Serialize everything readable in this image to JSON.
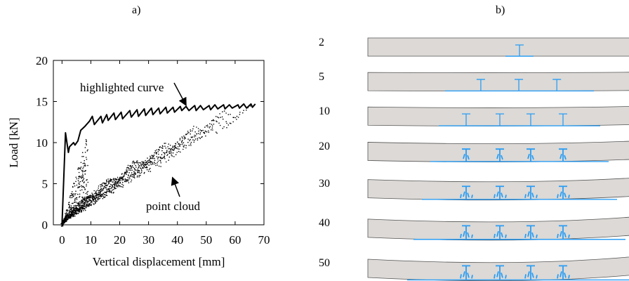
{
  "panel_a_label": "a)",
  "panel_b_label": "b)",
  "chart_data": {
    "type": "scatter",
    "xlabel": "Vertical displacement [mm]",
    "ylabel": "Load [kN]",
    "xlim": [
      -3,
      70
    ],
    "ylim": [
      0,
      20
    ],
    "xticks": [
      0,
      10,
      20,
      30,
      40,
      50,
      60,
      70
    ],
    "yticks": [
      0,
      5,
      10,
      15,
      20
    ],
    "grid": false,
    "annotations": [
      {
        "text": "highlighted curve",
        "target": [
          43,
          14.2
        ]
      },
      {
        "text": "point cloud",
        "target": [
          40,
          6.0
        ]
      }
    ],
    "series": [
      {
        "type": "line",
        "x": [
          0,
          1.2,
          2.2,
          2.6,
          4,
          4.5,
          5.5,
          6.5,
          8,
          9.5,
          10.5,
          11.2,
          13.5,
          14,
          15.5,
          16,
          18,
          18.5,
          20.5,
          21,
          23.5,
          24,
          26,
          26.5,
          28.5,
          29,
          31,
          31.5,
          33.5,
          34,
          36,
          36.5,
          38.5,
          39,
          41,
          41.5,
          43,
          44,
          46,
          46.5,
          48,
          49,
          51,
          51.5,
          53,
          54,
          56,
          56.5,
          58,
          59,
          61,
          61.5,
          63,
          64,
          65.5,
          66,
          67
        ],
        "y": [
          0,
          11.2,
          8.8,
          9.5,
          10.0,
          9.7,
          10.2,
          11.5,
          12.0,
          12.6,
          13.2,
          12.2,
          13.2,
          12.4,
          13.4,
          12.7,
          13.6,
          12.8,
          13.7,
          12.9,
          13.9,
          13.1,
          14.0,
          13.2,
          14.1,
          13.3,
          14.2,
          13.4,
          14.2,
          13.5,
          14.3,
          13.6,
          14.3,
          13.7,
          14.4,
          13.9,
          14.4,
          13.9,
          14.5,
          13.9,
          14.5,
          14.0,
          14.5,
          14.0,
          14.6,
          14.1,
          14.6,
          14.1,
          14.6,
          14.2,
          14.6,
          14.2,
          14.7,
          14.2,
          14.7,
          14.3,
          14.7
        ]
      }
    ]
  },
  "beam_rows": [
    {
      "step": "2",
      "deflection": 0.0,
      "cracks": [
        0
      ]
    },
    {
      "step": "5",
      "deflection": 0.1,
      "cracks": [
        -58,
        -1,
        56
      ]
    },
    {
      "step": "10",
      "deflection": 0.25,
      "cracks": [
        -76,
        -28,
        16,
        62
      ]
    },
    {
      "step": "20",
      "deflection": 0.45,
      "cracks": [
        -76,
        -28,
        16,
        62
      ]
    },
    {
      "step": "30",
      "deflection": 0.65,
      "cracks": [
        -76,
        -28,
        16,
        62
      ]
    },
    {
      "step": "40",
      "deflection": 0.85,
      "cracks": [
        -76,
        -28,
        16,
        62
      ]
    },
    {
      "step": "50",
      "deflection": 1.0,
      "cracks": [
        -76,
        -28,
        16,
        62
      ]
    }
  ],
  "colors": {
    "beam_fill": "#dcd9d6",
    "beam_stroke": "#555555",
    "crack": "#2a9df4",
    "point": "#000000"
  }
}
